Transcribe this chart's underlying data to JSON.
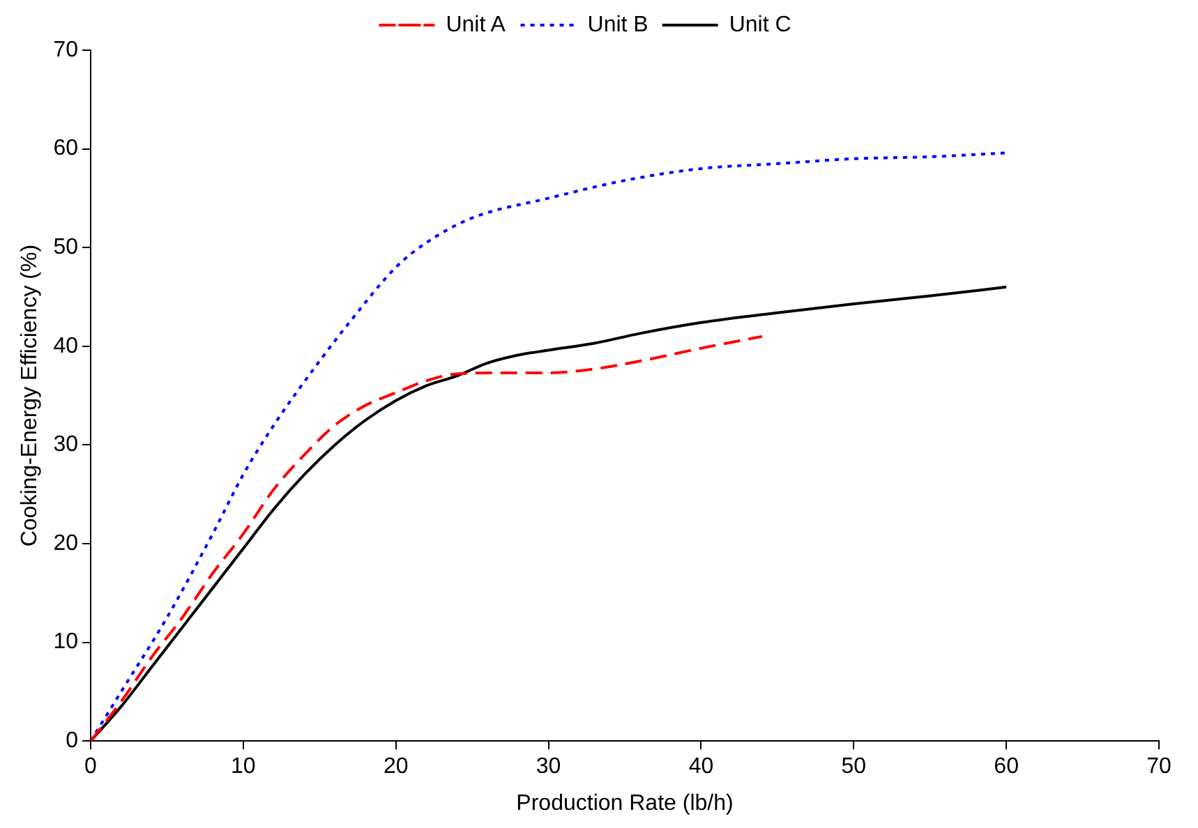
{
  "chart_data": {
    "type": "line",
    "xlabel": "Production Rate (lb/h)",
    "ylabel": "Cooking-Energy Efficiency (%)",
    "xlim": [
      0,
      70
    ],
    "xticks": [
      0,
      10,
      20,
      30,
      40,
      50,
      60,
      70
    ],
    "ylim": [
      0,
      70
    ],
    "yticks": [
      0,
      10,
      20,
      30,
      40,
      50,
      60,
      70
    ],
    "grid": false,
    "legend": "top",
    "marker": "none",
    "series": [
      {
        "name": "Unit A",
        "color": "#ff0000",
        "line_style": "dashed",
        "x": [
          0,
          2,
          4,
          6,
          8,
          10,
          12,
          14,
          16,
          18,
          20,
          22,
          24,
          27,
          30,
          33,
          36,
          40,
          44
        ],
        "values": [
          0,
          4,
          8.5,
          12.5,
          17,
          21,
          25.5,
          29,
          32,
          34,
          35.3,
          36.5,
          37.2,
          37.3,
          37.3,
          37.7,
          38.5,
          39.8,
          41
        ]
      },
      {
        "name": "Unit B",
        "color": "#0000ff",
        "line_style": "dotted",
        "x": [
          0,
          2,
          5,
          8,
          10,
          12,
          15,
          17,
          20,
          22,
          25,
          30,
          35,
          40,
          45,
          50,
          55,
          60
        ],
        "values": [
          0,
          5,
          12.5,
          21,
          27,
          32,
          38.5,
          42.5,
          48,
          50.5,
          53,
          55,
          56.8,
          58,
          58.5,
          59,
          59.2,
          59.6
        ]
      },
      {
        "name": "Unit C",
        "color": "#000000",
        "line_style": "solid",
        "x": [
          0,
          2,
          4,
          6,
          8,
          10,
          12,
          14,
          16,
          18,
          20,
          22,
          24,
          26,
          28,
          30,
          33,
          36,
          40,
          45,
          50,
          55,
          60
        ],
        "values": [
          0,
          3.5,
          7.5,
          11.5,
          15.5,
          19.5,
          23.5,
          27,
          30,
          32.5,
          34.5,
          36,
          37,
          38.3,
          39.1,
          39.6,
          40.3,
          41.3,
          42.4,
          43.4,
          44.3,
          45.1,
          46
        ]
      }
    ]
  }
}
